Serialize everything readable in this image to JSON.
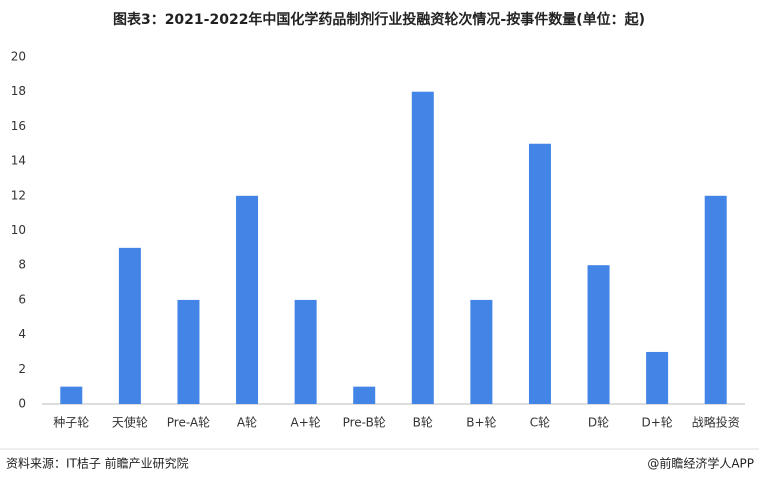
{
  "chart_data": {
    "type": "bar",
    "title": "图表3：2021-2022年中国化学药品制剂行业投融资轮次情况-按事件数量(单位：起)",
    "categories": [
      "种子轮",
      "天使轮",
      "Pre-A轮",
      "A轮",
      "A+轮",
      "Pre-B轮",
      "B轮",
      "B+轮",
      "C轮",
      "D轮",
      "D+轮",
      "战略投资"
    ],
    "values": [
      1,
      9,
      6,
      12,
      6,
      1,
      18,
      6,
      15,
      8,
      3,
      12
    ],
    "color": "#4285e6",
    "ylim": [
      0,
      20
    ],
    "yticks": [
      0,
      2,
      4,
      6,
      8,
      10,
      12,
      14,
      16,
      18,
      20
    ],
    "grid": false,
    "source": "资料来源：IT桔子 前瞻产业研究院",
    "credit": "@前瞻经济学人APP"
  }
}
